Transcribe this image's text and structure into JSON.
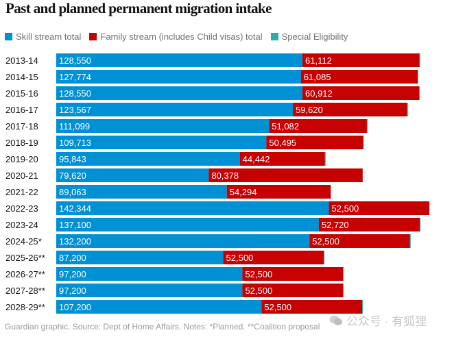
{
  "chart_data": {
    "type": "bar",
    "orientation": "horizontal",
    "stacked": true,
    "title": "Past and planned permanent migration intake",
    "xlabel": "",
    "ylabel": "",
    "grid": false,
    "legend_position": "top-left",
    "categories": [
      "2013-14",
      "2014-15",
      "2015-16",
      "2016-17",
      "2017-18",
      "2018-19",
      "2019-20",
      "2020-21",
      "2021-22",
      "2022-23",
      "2023-24",
      "2024-25*",
      "2025-26**",
      "2026-27**",
      "2027-28**",
      "2028-29**"
    ],
    "series": [
      {
        "name": "Skill stream total",
        "color": "#0091d5",
        "values": [
          128550,
          127774,
          128550,
          123567,
          111099,
          109713,
          95843,
          79620,
          89063,
          142344,
          137100,
          132200,
          87200,
          97200,
          97200,
          107200
        ],
        "labels": [
          "128,550",
          "127,774",
          "128,550",
          "123,567",
          "111,099",
          "109,713",
          "95,843",
          "79,620",
          "89,063",
          "142,344",
          "137,100",
          "132,200",
          "87,200",
          "97,200",
          "97,200",
          "107,200"
        ]
      },
      {
        "name": "Family stream (includes Child visas) total",
        "color": "#c70000",
        "values": [
          61112,
          61085,
          60912,
          59620,
          51082,
          50495,
          44442,
          80378,
          54294,
          52500,
          52720,
          52500,
          52500,
          52500,
          52500,
          52500
        ],
        "labels": [
          "61,112",
          "61,085",
          "60,912",
          "59,620",
          "51,082",
          "50,495",
          "44,442",
          "80,378",
          "54,294",
          "52,500",
          "52,720",
          "52,500",
          "52,500",
          "52,500",
          "52,500",
          "52,500"
        ]
      },
      {
        "name": "Special Eligibility",
        "color": "#22b1a4",
        "values": [
          338,
          0,
          308,
          421,
          236,
          236,
          236,
          0,
          0,
          0,
          400,
          300,
          300,
          300,
          300,
          300
        ]
      }
    ],
    "xlim": [
      0,
      196000
    ]
  },
  "footer": "Guardian graphic. Source: Dept of Home Affairs. Notes: *Planned. **Coalition proposal",
  "watermark": "公众号 · 有狐狸"
}
